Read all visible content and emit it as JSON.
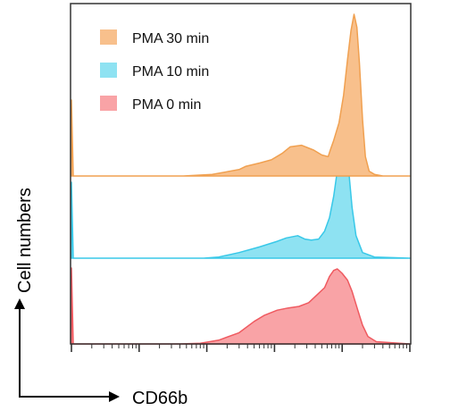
{
  "chart_data": {
    "type": "area",
    "title": "",
    "xlabel": "CD66b",
    "ylabel": "Cell numbers",
    "x_scale": "log",
    "xlim": [
      1,
      100000
    ],
    "grid": false,
    "legend_position": "top-left",
    "series": [
      {
        "name": "PMA 30 min",
        "color": "#f8c08c",
        "stroke": "#f0a050",
        "x": [
          1,
          45,
          120,
          300,
          380,
          600,
          900,
          1300,
          1700,
          2500,
          3800,
          5000,
          6200,
          6800,
          7500,
          9000,
          10500,
          12000,
          13500,
          15000,
          16500,
          18000,
          20000,
          22000,
          25000,
          30000,
          40000,
          60000,
          100000
        ],
        "y": [
          0,
          0,
          0.01,
          0.04,
          0.06,
          0.08,
          0.1,
          0.14,
          0.18,
          0.19,
          0.16,
          0.13,
          0.12,
          0.17,
          0.22,
          0.33,
          0.5,
          0.72,
          0.9,
          1.0,
          0.92,
          0.7,
          0.35,
          0.12,
          0.03,
          0.01,
          0,
          0,
          0
        ]
      },
      {
        "name": "PMA 10 min",
        "color": "#8ee2f2",
        "stroke": "#38c8e8",
        "x": [
          1,
          90,
          150,
          300,
          600,
          1100,
          1500,
          2200,
          2800,
          3500,
          4500,
          5500,
          6500,
          7500,
          8500,
          9500,
          10500,
          11500,
          12500,
          14000,
          16000,
          20000,
          30000,
          100000
        ],
        "y": [
          0,
          0,
          0.01,
          0.05,
          0.1,
          0.15,
          0.18,
          0.2,
          0.17,
          0.16,
          0.17,
          0.24,
          0.36,
          0.55,
          0.78,
          0.98,
          1.0,
          0.97,
          0.78,
          0.45,
          0.2,
          0.05,
          0.01,
          0
        ]
      },
      {
        "name": "PMA 0 min",
        "color": "#f9a3a6",
        "stroke": "#ef5a60",
        "x": [
          1,
          15,
          40,
          80,
          150,
          300,
          500,
          700,
          1100,
          1600,
          2300,
          3200,
          4200,
          5500,
          6500,
          7500,
          8500,
          10000,
          12000,
          14000,
          17000,
          20000,
          24000,
          32000,
          100000
        ],
        "y": [
          0,
          0,
          0,
          0.01,
          0.05,
          0.15,
          0.3,
          0.38,
          0.45,
          0.48,
          0.5,
          0.55,
          0.65,
          0.75,
          0.9,
          0.98,
          1.0,
          0.94,
          0.85,
          0.7,
          0.45,
          0.25,
          0.1,
          0.03,
          0
        ]
      }
    ]
  }
}
